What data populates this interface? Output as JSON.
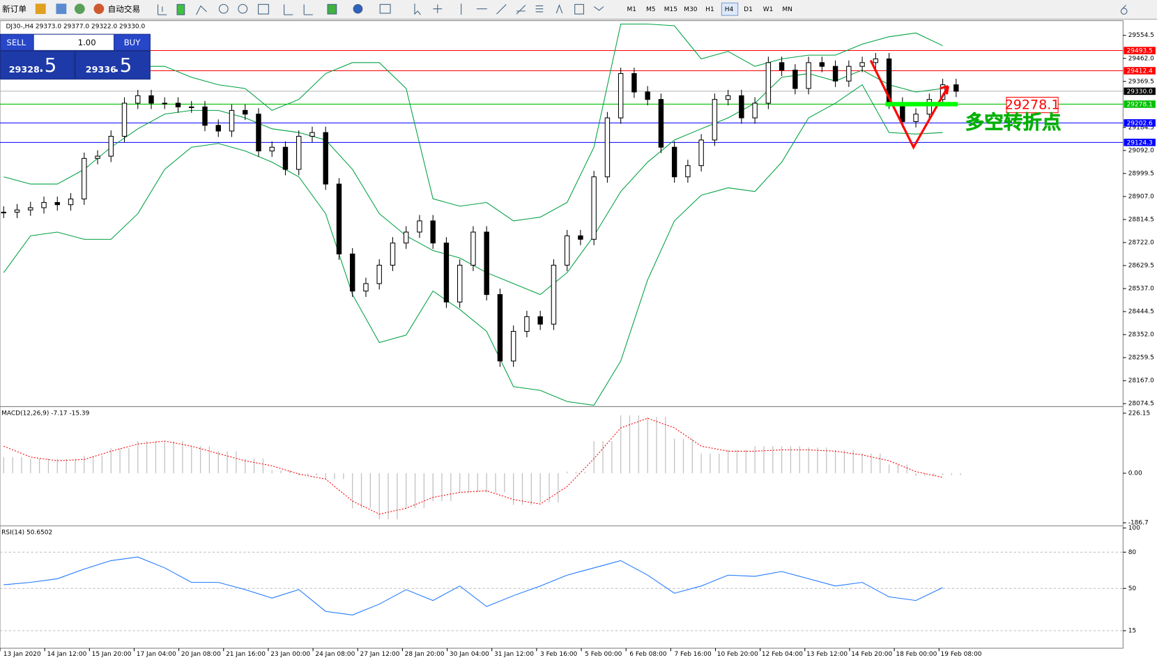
{
  "toolbar": {
    "new_order": "新订单",
    "auto_trading": "自动交易",
    "timeframes": [
      "M1",
      "M5",
      "M15",
      "M30",
      "H1",
      "H4",
      "D1",
      "W1",
      "MN"
    ],
    "active_timeframe": "H4"
  },
  "chart": {
    "header": "DJ30-,H4  29373.0 29377.0 29322.0 29330.0",
    "trade_panel": {
      "sell": "SELL",
      "lot": "1.00",
      "buy": "BUY",
      "sell_big": "29328",
      "sell_small": ".5",
      "buy_big": "29336",
      "buy_small": ".5"
    },
    "ylim": [
      28065.6,
      29607.8
    ],
    "yticks": [
      29554.5,
      {
        "value": 29462.0,
        "label": "29462.0"
      },
      29369.5,
      29184.5,
      {
        "value": 29092.0,
        "label": "29092.0"
      },
      28999.5,
      {
        "value": 28907.0,
        "label": "28907.0"
      },
      28814.5,
      {
        "value": 28722.0,
        "label": "28722.0"
      },
      28629.5,
      {
        "value": 28537.0,
        "label": "28537.0"
      },
      28444.5,
      {
        "value": 28352.0,
        "label": "28352.0"
      },
      28259.5,
      {
        "value": 28167.0,
        "label": "28167.0"
      },
      28074.5
    ],
    "levels": [
      {
        "value": 29493.5,
        "color": "#ff0000"
      },
      {
        "value": 29412.4,
        "color": "#ff0000"
      },
      {
        "value": {
          "value": 29330.0,
          "label": "29330.0"
        },
        "color": "#000000"
      },
      {
        "value": 29278.1,
        "color": "#00c000"
      },
      {
        "value": 29202.6,
        "color": "#0000ff"
      },
      {
        "value": 29124.3,
        "color": "#0000ff"
      }
    ],
    "close": [
      28844,
      28853,
      28862,
      28883,
      28874,
      28897,
      29060,
      29069,
      29149,
      29282,
      29312,
      29282,
      29282,
      29267,
      29267,
      29193,
      29170,
      29253,
      29238,
      29090,
      29105,
      29016,
      29149,
      29164,
      28957,
      28676,
      28527,
      28557,
      28631,
      28720,
      28764,
      28809,
      28720,
      28483,
      28631,
      28764,
      28513,
      28246,
      28365,
      28424,
      28394,
      28631,
      28749,
      28735,
      28986,
      29223,
      29401,
      29327,
      29297,
      29105,
      28986,
      29031,
      29134,
      29297,
      29312,
      29223,
      29282,
      29445,
      29415,
      29341,
      29445,
      29430,
      29371,
      29430,
      29445,
      29460,
      29282,
      29208,
      29238,
      29297,
      29356,
      29330
    ],
    "bollinger": {
      "color": "#00a040",
      "upper": [
        29475,
        29460,
        29445,
        29415,
        29401,
        29430,
        29430,
        29386,
        29356,
        29341,
        29253,
        29297,
        29401,
        29445,
        29445,
        29341,
        28898,
        28868,
        28883,
        28809,
        28824,
        28883,
        29105,
        29600,
        29600,
        29593,
        29460,
        29490,
        29430,
        29460,
        29475,
        29475,
        29519,
        29549,
        29564,
        29513
      ],
      "middle": [
        28986,
        28957,
        28957,
        29016,
        29105,
        29179,
        29238,
        29253,
        29253,
        29223,
        29179,
        29164,
        29134,
        29016,
        28838,
        28749,
        28690,
        28660,
        28601,
        28557,
        28513,
        28601,
        28749,
        28927,
        29045,
        29134,
        29179,
        29223,
        29282,
        29386,
        29401,
        29371,
        29415,
        29356,
        29327,
        29341
      ],
      "lower": [
        28601,
        28749,
        28764,
        28735,
        28735,
        28838,
        29016,
        29105,
        29120,
        29090,
        29045,
        28986,
        28838,
        28513,
        28320,
        28350,
        28527,
        28453,
        28365,
        28143,
        28128,
        28083,
        28068,
        28246,
        28572,
        28809,
        28912,
        28942,
        28927,
        29045,
        29223,
        29282,
        29356,
        29164,
        29158,
        29164
      ]
    },
    "annotation": {
      "text": "多空转折点"
    },
    "time_labels": [
      "13 Jan 2020",
      "14 Jan 12:00",
      "15 Jan 20:00",
      "17 Jan 04:00",
      "20 Jan 08:00",
      "21 Jan 16:00",
      "23 Jan 00:00",
      "24 Jan 08:00",
      "27 Jan 12:00",
      "28 Jan 20:00",
      "30 Jan 04:00",
      "31 Jan 12:00",
      "3 Feb 16:00",
      "5 Feb 00:00",
      "6 Feb 08:00",
      "7 Feb 16:00",
      "10 Feb 20:00",
      "12 Feb 04:00",
      "13 Feb 12:00",
      "14 Feb 20:00",
      "18 Feb 00:00",
      "19 Feb 08:00"
    ]
  },
  "macd": {
    "label": "MACD(12,26,9) -7.17 -15.39",
    "ylim": [
      -195.8,
      245.5
    ],
    "yticks": [
      226.15,
      {
        "value": 0,
        "label": "0.00"
      },
      -186.7
    ],
    "histogram": [
      61,
      55,
      55,
      66,
      94,
      121,
      121,
      102,
      83,
      55,
      11,
      -8,
      -22,
      -132,
      -174,
      -132,
      -105,
      -72,
      -72,
      -119,
      -110,
      6,
      121,
      218,
      212,
      130,
      74,
      88,
      102,
      102,
      97,
      88,
      74,
      33,
      -11,
      -7.17
    ],
    "signal": [
      102,
      61,
      47,
      52,
      83,
      110,
      121,
      102,
      74,
      47,
      28,
      -3,
      -22,
      -105,
      -154,
      -132,
      -91,
      -72,
      -66,
      -99,
      -116,
      -50,
      55,
      171,
      207,
      171,
      102,
      83,
      83,
      88,
      88,
      83,
      69,
      47,
      6,
      -15.39
    ],
    "signal_color": "#ff0000",
    "histogram_color": "#c0c0c0"
  },
  "rsi": {
    "label": "RSI(14) 50.6502",
    "ylim": [
      0.5,
      100.5
    ],
    "yticks": [
      100,
      80,
      50,
      15
    ],
    "levels": [
      80,
      50,
      15
    ],
    "color": "#1e78ff",
    "values": [
      53,
      55,
      58,
      66,
      73,
      76,
      67,
      55,
      55,
      49,
      42,
      49,
      31,
      28,
      37,
      49,
      40,
      52,
      35,
      44,
      52,
      61,
      67,
      73,
      61,
      46,
      52,
      61,
      60,
      64,
      58,
      52,
      55,
      43,
      40,
      50.6502
    ]
  }
}
